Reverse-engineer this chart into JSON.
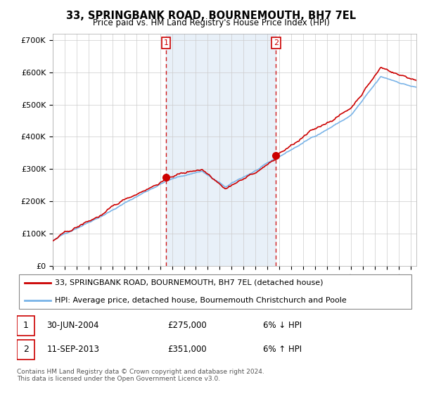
{
  "title": "33, SPRINGBANK ROAD, BOURNEMOUTH, BH7 7EL",
  "subtitle": "Price paid vs. HM Land Registry's House Price Index (HPI)",
  "ylabel_ticks": [
    "£0",
    "£100K",
    "£200K",
    "£300K",
    "£400K",
    "£500K",
    "£600K",
    "£700K"
  ],
  "ytick_vals": [
    0,
    100000,
    200000,
    300000,
    400000,
    500000,
    600000,
    700000
  ],
  "ylim": [
    0,
    720000
  ],
  "xlim_start": 1995.0,
  "xlim_end": 2025.5,
  "hpi_color": "#7ab4e8",
  "price_color": "#cc0000",
  "bg_shading_color": "#ddeeff",
  "marker1_date": 2004.5,
  "marker1_price": 275000,
  "marker1_label": "1",
  "marker2_date": 2013.71,
  "marker2_price": 351000,
  "marker2_label": "2",
  "legend_line1": "33, SPRINGBANK ROAD, BOURNEMOUTH, BH7 7EL (detached house)",
  "legend_line2": "HPI: Average price, detached house, Bournemouth Christchurch and Poole",
  "table_row1_num": "1",
  "table_row1_date": "30-JUN-2004",
  "table_row1_price": "£275,000",
  "table_row1_hpi": "6% ↓ HPI",
  "table_row2_num": "2",
  "table_row2_date": "11-SEP-2013",
  "table_row2_price": "£351,000",
  "table_row2_hpi": "6% ↑ HPI",
  "footnote": "Contains HM Land Registry data © Crown copyright and database right 2024.\nThis data is licensed under the Open Government Licence v3.0.",
  "grid_color": "#cccccc",
  "background_color": "#ffffff"
}
